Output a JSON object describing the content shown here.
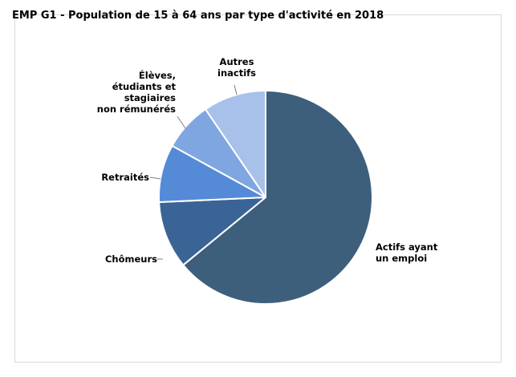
{
  "chart_data": {
    "type": "pie",
    "title": "EMP G1 - Population de 15 à 64 ans par type d'activité en 2018",
    "series": [
      {
        "labels": [
          "Actifs ayant un emploi",
          "Chômeurs",
          "Retraités",
          "Élèves, étudiants et stagiaires non rémunérés",
          "Autres inactifs"
        ],
        "values": [
          64.5,
          10.3,
          8.8,
          7.5,
          9.6
        ],
        "colors": [
          "#3d5f7c",
          "#3b6496",
          "#558ad7",
          "#7fa6e0",
          "#a8c1ea"
        ]
      }
    ],
    "legend": "none"
  },
  "slice_labels": [
    {
      "lines": [
        "Actifs ayant",
        "un emploi"
      ]
    },
    {
      "lines": [
        "Chômeurs"
      ]
    },
    {
      "lines": [
        "Retraités"
      ]
    },
    {
      "lines": [
        "Élèves,",
        "étudiants et",
        "stagiaires",
        "non rémunérés"
      ]
    },
    {
      "lines": [
        "Autres",
        "inactifs"
      ]
    }
  ]
}
